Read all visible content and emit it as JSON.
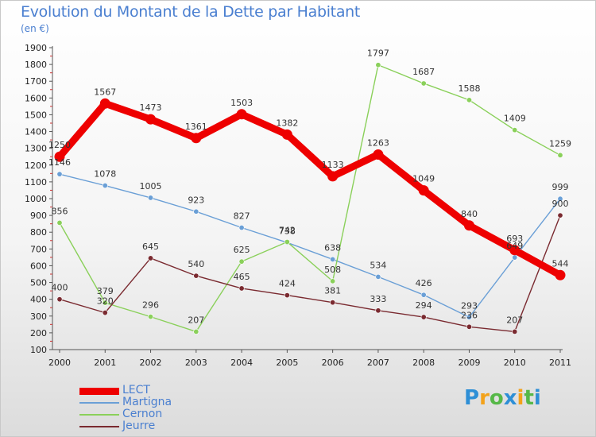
{
  "title": "Evolution du Montant de la Dette par Habitant",
  "subtitle": "(en €)",
  "chart_data": {
    "type": "line",
    "title": "Evolution du Montant de la Dette par Habitant",
    "subtitle": "(en €)",
    "xlabel": "",
    "ylabel": "",
    "x": [
      "2000",
      "2001",
      "2002",
      "2003",
      "2004",
      "2005",
      "2006",
      "2007",
      "2008",
      "2009",
      "2010",
      "2011"
    ],
    "ylim": [
      100,
      1900
    ],
    "yticks": [
      100,
      200,
      300,
      400,
      500,
      600,
      700,
      800,
      900,
      1000,
      1100,
      1200,
      1300,
      1400,
      1500,
      1600,
      1700,
      1800,
      1900
    ],
    "grid": false,
    "legend_position": "bottom-left",
    "series": [
      {
        "name": "LECT",
        "color": "#ee0000",
        "values": [
          1250,
          1567,
          1473,
          1361,
          1503,
          1382,
          1133,
          1263,
          1049,
          840,
          693,
          544
        ]
      },
      {
        "name": "Martigna",
        "color": "#6a9fd6",
        "values": [
          1146,
          1078,
          1005,
          923,
          827,
          738,
          638,
          534,
          426,
          293,
          649,
          999
        ]
      },
      {
        "name": "Cernon",
        "color": "#8ad05a",
        "values": [
          856,
          379,
          296,
          207,
          625,
          742,
          508,
          1797,
          1687,
          1588,
          1409,
          1259
        ]
      },
      {
        "name": "Jeurre",
        "color": "#7a2a30",
        "values": [
          400,
          320,
          645,
          540,
          465,
          424,
          381,
          333,
          294,
          236,
          207,
          900
        ]
      }
    ]
  },
  "logo": {
    "letters": [
      "P",
      "r",
      "o",
      "x",
      "i",
      "t",
      "i"
    ],
    "colors": [
      "#2e8fd6",
      "#f3a21a",
      "#56b848",
      "#2e8fd6",
      "#f3a21a",
      "#56b848",
      "#2e8fd6"
    ]
  }
}
